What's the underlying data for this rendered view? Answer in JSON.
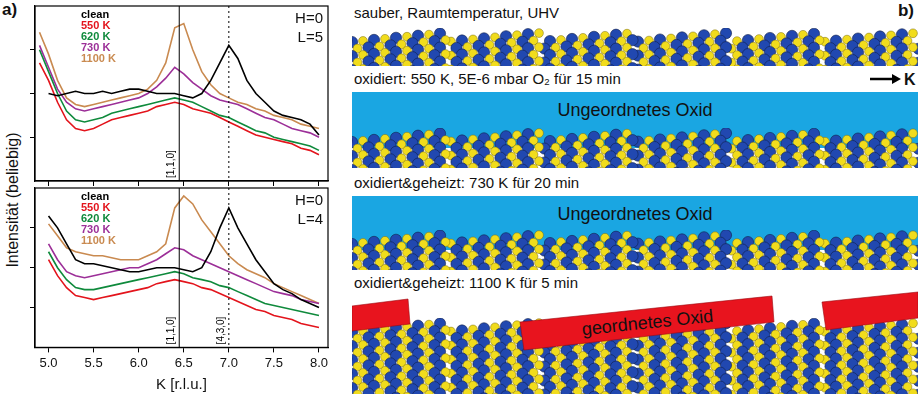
{
  "panels": {
    "a": "a)",
    "b": "b)"
  },
  "y_label": "Intensität (beliebig)",
  "chart_data": [
    {
      "type": "line",
      "annotations": [
        "H=0",
        "L=5"
      ],
      "legend": "upper left",
      "grid": false,
      "tick_labels": false,
      "x": [
        4.9,
        5.0,
        5.1,
        5.2,
        5.3,
        5.4,
        5.5,
        5.6,
        5.7,
        5.8,
        5.9,
        6.0,
        6.1,
        6.2,
        6.3,
        6.4,
        6.5,
        6.6,
        6.7,
        6.8,
        6.9,
        7.0,
        7.1,
        7.2,
        7.3,
        7.4,
        7.5,
        7.6,
        7.7,
        7.8,
        7.9,
        8.0
      ],
      "series": [
        {
          "name": "clean",
          "color": "#000000",
          "values": [
            null,
            2.0,
            1.95,
            2.0,
            2.05,
            2.0,
            2.0,
            2.05,
            2.0,
            2.05,
            2.1,
            2.1,
            2.05,
            2.0,
            2.0,
            2.0,
            1.95,
            1.9,
            2.0,
            2.3,
            2.7,
            3.1,
            2.8,
            2.3,
            2.0,
            1.8,
            1.6,
            1.5,
            1.45,
            1.4,
            1.3,
            1.05
          ]
        },
        {
          "name": "550 K",
          "color": "#e3141c",
          "values": [
            2.7,
            2.3,
            1.8,
            1.4,
            1.2,
            1.15,
            1.2,
            1.3,
            1.4,
            1.45,
            1.5,
            1.55,
            1.6,
            1.7,
            1.75,
            1.8,
            1.75,
            1.65,
            1.6,
            1.55,
            1.45,
            1.35,
            1.25,
            1.15,
            1.05,
            1.0,
            0.95,
            0.9,
            0.85,
            0.75,
            0.7,
            0.6
          ]
        },
        {
          "name": "620 K",
          "color": "#0f8a3c",
          "values": [
            3.0,
            2.5,
            2.0,
            1.6,
            1.4,
            1.35,
            1.4,
            1.45,
            1.55,
            1.6,
            1.65,
            1.7,
            1.75,
            1.8,
            1.85,
            1.9,
            1.85,
            1.8,
            1.7,
            1.6,
            1.5,
            1.45,
            1.35,
            1.25,
            1.15,
            1.1,
            1.0,
            0.95,
            0.9,
            0.85,
            0.8,
            0.7
          ]
        },
        {
          "name": "730 K",
          "color": "#9c2f98",
          "values": [
            3.1,
            2.6,
            2.1,
            1.8,
            1.65,
            1.6,
            1.65,
            1.7,
            1.75,
            1.8,
            1.85,
            1.9,
            2.0,
            2.15,
            2.35,
            2.6,
            2.45,
            2.25,
            2.1,
            1.95,
            1.85,
            1.8,
            1.75,
            1.65,
            1.55,
            1.45,
            1.4,
            1.3,
            1.2,
            1.15,
            1.1,
            1.0
          ]
        },
        {
          "name": "1100 K",
          "color": "#c98a50",
          "values": [
            3.4,
            2.9,
            2.3,
            1.9,
            1.75,
            1.7,
            1.75,
            1.8,
            1.85,
            1.9,
            1.95,
            2.0,
            2.1,
            2.3,
            2.7,
            3.5,
            3.6,
            3.0,
            2.5,
            2.2,
            2.0,
            1.9,
            1.8,
            1.75,
            1.65,
            1.6,
            1.5,
            1.45,
            1.4,
            1.3,
            1.25,
            1.2
          ]
        }
      ],
      "reference_lines": [
        {
          "value": 6.45,
          "label": "[1,1,0]",
          "line_style": "solid"
        },
        {
          "value": 7.0,
          "line_style": "dotted"
        }
      ],
      "xlim": [
        4.85,
        8.1
      ],
      "xticks": [
        {
          "value": 5,
          "label": "5.0"
        },
        5.5,
        {
          "value": 6,
          "label": "6.0"
        },
        6.5,
        {
          "value": 7,
          "label": "7.0"
        },
        7.5,
        {
          "value": 8,
          "label": "8.0"
        }
      ],
      "ylim": [
        0,
        4
      ],
      "yticks": [
        1,
        2,
        3
      ]
    },
    {
      "type": "line",
      "annotations": [
        "H=0",
        "L=4"
      ],
      "legend": "upper left",
      "grid": false,
      "tick_labels": "x",
      "x_label": "K [r.l.u.]",
      "x": [
        4.9,
        5.0,
        5.1,
        5.2,
        5.3,
        5.4,
        5.5,
        5.6,
        5.7,
        5.8,
        5.9,
        6.0,
        6.1,
        6.2,
        6.3,
        6.4,
        6.5,
        6.6,
        6.7,
        6.8,
        6.9,
        7.0,
        7.1,
        7.2,
        7.3,
        7.4,
        7.5,
        7.6,
        7.7,
        7.8,
        7.9,
        8.0
      ],
      "series": [
        {
          "name": "clean",
          "color": "#000000",
          "values": [
            null,
            3.3,
            3.0,
            2.6,
            2.2,
            2.1,
            2.1,
            2.05,
            2.0,
            1.95,
            1.9,
            1.9,
            1.95,
            2.0,
            2.0,
            2.0,
            1.95,
            1.9,
            2.0,
            2.4,
            3.0,
            3.5,
            3.0,
            2.6,
            2.2,
            1.9,
            1.6,
            1.45,
            1.35,
            1.2,
            1.1,
            1.0
          ]
        },
        {
          "name": "550 K",
          "color": "#e3141c",
          "values": [
            null,
            2.2,
            1.8,
            1.5,
            1.3,
            1.25,
            1.2,
            1.25,
            1.3,
            1.35,
            1.4,
            1.45,
            1.5,
            1.6,
            1.65,
            1.7,
            1.65,
            1.6,
            1.5,
            1.45,
            1.35,
            1.25,
            1.15,
            1.05,
            0.95,
            0.9,
            0.8,
            0.75,
            0.7,
            0.6,
            0.55,
            0.5
          ]
        },
        {
          "name": "620 K",
          "color": "#0f8a3c",
          "values": [
            null,
            2.4,
            2.0,
            1.7,
            1.5,
            1.45,
            1.45,
            1.5,
            1.55,
            1.6,
            1.65,
            1.7,
            1.75,
            1.8,
            1.85,
            1.9,
            1.85,
            1.75,
            1.7,
            1.65,
            1.55,
            1.5,
            1.4,
            1.3,
            1.2,
            1.1,
            1.05,
            1.0,
            0.95,
            0.9,
            0.85,
            0.8
          ]
        },
        {
          "name": "730 K",
          "color": "#9c2f98",
          "values": [
            null,
            2.6,
            2.2,
            1.9,
            1.8,
            1.75,
            1.8,
            1.85,
            1.9,
            1.95,
            2.0,
            2.0,
            2.1,
            2.2,
            2.35,
            2.5,
            2.45,
            2.3,
            2.2,
            2.1,
            2.0,
            1.9,
            1.8,
            1.7,
            1.6,
            1.5,
            1.4,
            1.35,
            1.3,
            1.2,
            1.15,
            1.1
          ]
        },
        {
          "name": "1100 K",
          "color": "#c98a50",
          "values": [
            null,
            3.1,
            2.8,
            2.5,
            2.4,
            2.35,
            2.3,
            2.3,
            2.25,
            2.2,
            2.2,
            2.2,
            2.3,
            2.4,
            2.6,
            3.5,
            3.8,
            3.6,
            3.2,
            2.9,
            2.6,
            2.3,
            2.1,
            1.95,
            1.85,
            1.75,
            1.6,
            1.5,
            1.4,
            1.3,
            1.2,
            1.1
          ]
        }
      ],
      "reference_lines": [
        {
          "value": 6.45,
          "label": "[1,1,0]",
          "line_style": "solid"
        },
        {
          "value": 7.0,
          "label": "[4,3,0]",
          "line_style": "dotted"
        }
      ],
      "xlim": [
        4.85,
        8.1
      ],
      "xticks": [
        {
          "value": 5,
          "label": "5.0"
        },
        5.5,
        {
          "value": 6,
          "label": "6.0"
        },
        6.5,
        {
          "value": 7,
          "label": "7.0"
        },
        7.5,
        {
          "value": 8,
          "label": "8.0"
        }
      ],
      "ylim": [
        0,
        4
      ],
      "yticks": [
        1,
        2,
        3
      ]
    }
  ],
  "diagram": {
    "direction_label": "K",
    "steps": [
      {
        "caption": "sauber, Raumtemperatur, UHV"
      },
      {
        "caption": "oxidiert: 550 K, 5E-6 mbar O₂ für 15 min",
        "oxide": "Ungeordnetes Oxid"
      },
      {
        "caption": "oxidiert&geheizt: 730 K für 20 min",
        "oxide": "Ungeordnetes Oxid"
      },
      {
        "caption": "oxidiert&geheizt: 1100 K für 5 min",
        "oxide": "geordnetes Oxid"
      }
    ]
  }
}
